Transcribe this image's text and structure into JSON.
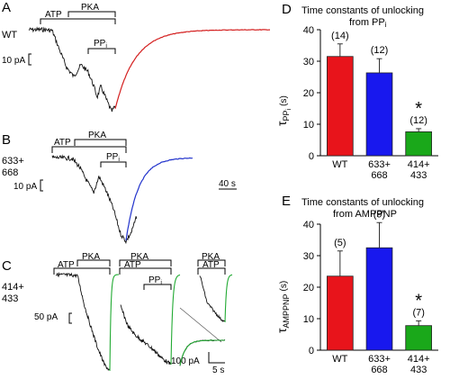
{
  "figure": {
    "panel_a": {
      "letter": "A",
      "construct": "WT",
      "bars": {
        "atp": "ATP",
        "pka": "PKA",
        "pp": "PP",
        "pp_sub": "i"
      },
      "scale": "10 pA"
    },
    "panel_b": {
      "letter": "B",
      "construct_line1": "633+",
      "construct_line2": "668",
      "bars": {
        "atp": "ATP",
        "pka": "PKA",
        "pp": "PP",
        "pp_sub": "i"
      },
      "scale_current": "10 pA",
      "scale_time": "40 s"
    },
    "panel_c": {
      "letter": "C",
      "construct_line1": "414+",
      "construct_line2": "433",
      "bars": {
        "atp": "ATP",
        "pka": "PKA",
        "pp": "PP",
        "pp_sub": "i"
      },
      "scale_current_1": "50 pA",
      "scale_current_2": "100 pA",
      "scale_time": "5 s"
    }
  },
  "chart_data": [
    {
      "type": "bar",
      "panel": "D",
      "title_line1": "Time constants of unlocking",
      "title_line2": "from PP",
      "title_sub": "i",
      "ylabel": "τ",
      "ylabel_sub": "PP",
      "ylabel_subsub": "i",
      "ylabel_unit": "(s)",
      "ylim": [
        0,
        40
      ],
      "yticks": [
        "0",
        "10",
        "20",
        "30",
        "40"
      ],
      "categories": [
        [
          "WT"
        ],
        [
          "633+",
          "668"
        ],
        [
          "414+",
          "433"
        ]
      ],
      "values": [
        31.5,
        26.3,
        7.6
      ],
      "errors": [
        4.0,
        4.5,
        1.0
      ],
      "n_labels": [
        "(14)",
        "(12)",
        "(12)"
      ],
      "significance": [
        "",
        "",
        "*"
      ],
      "colors": [
        "#e8141b",
        "#1818ee",
        "#1aa81a"
      ]
    },
    {
      "type": "bar",
      "panel": "E",
      "title_line1": "Time constants of unlocking",
      "title_line2": "from AMPPNP",
      "ylabel": "τ",
      "ylabel_sub": "AMPPNP",
      "ylabel_unit": "(s)",
      "ylim": [
        0,
        40
      ],
      "yticks": [
        "0",
        "10",
        "20",
        "30",
        "40"
      ],
      "categories": [
        [
          "WT"
        ],
        [
          "633+",
          "668"
        ],
        [
          "414+",
          "433"
        ]
      ],
      "values": [
        23.5,
        32.5,
        7.8
      ],
      "errors": [
        8.0,
        8.0,
        1.5
      ],
      "n_labels": [
        "(5)",
        "(9)",
        "(7)"
      ],
      "significance": [
        "",
        "",
        "*"
      ],
      "colors": [
        "#e8141b",
        "#1818ee",
        "#1aa81a"
      ]
    }
  ]
}
